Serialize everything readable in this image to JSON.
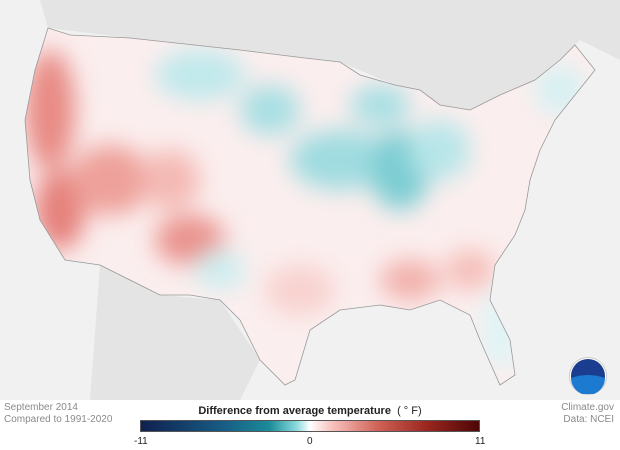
{
  "caption": {
    "date": "September 2014",
    "baseline": "Compared to 1991-2020",
    "source": "Climate.gov",
    "data": "Data: NCEI"
  },
  "legend": {
    "title": "Difference from average temperature",
    "unit": "( ° F)",
    "min": "-11",
    "mid": "0",
    "max": "11",
    "colors": {
      "cold": "#10204f",
      "neutral": "#ffffff",
      "warm": "#4d0606"
    }
  },
  "logo": "NOAA"
}
